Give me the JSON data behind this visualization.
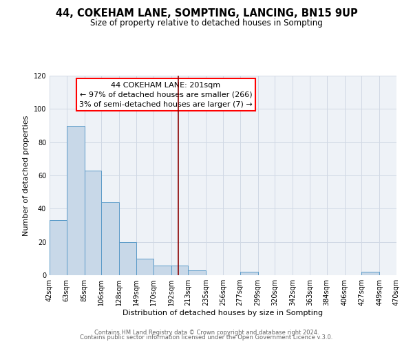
{
  "title": "44, COKEHAM LANE, SOMPTING, LANCING, BN15 9UP",
  "subtitle": "Size of property relative to detached houses in Sompting",
  "xlabel": "Distribution of detached houses by size in Sompting",
  "ylabel": "Number of detached properties",
  "bar_color": "#c8d8e8",
  "bar_edge_color": "#5a9ac8",
  "background_color": "#eef2f7",
  "grid_color": "#d0d8e4",
  "bin_edges": [
    42,
    63,
    85,
    106,
    128,
    149,
    170,
    192,
    213,
    235,
    256,
    277,
    299,
    320,
    342,
    363,
    384,
    406,
    427,
    449,
    470
  ],
  "bin_labels": [
    "42sqm",
    "63sqm",
    "85sqm",
    "106sqm",
    "128sqm",
    "149sqm",
    "170sqm",
    "192sqm",
    "213sqm",
    "235sqm",
    "256sqm",
    "277sqm",
    "299sqm",
    "320sqm",
    "342sqm",
    "363sqm",
    "384sqm",
    "406sqm",
    "427sqm",
    "449sqm",
    "470sqm"
  ],
  "counts": [
    33,
    90,
    63,
    44,
    20,
    10,
    6,
    6,
    3,
    0,
    0,
    2,
    0,
    0,
    0,
    0,
    0,
    0,
    2,
    0
  ],
  "ylim": [
    0,
    120
  ],
  "yticks": [
    0,
    20,
    40,
    60,
    80,
    100,
    120
  ],
  "property_line_x": 201,
  "annotation_title": "44 COKEHAM LANE: 201sqm",
  "annotation_line1": "← 97% of detached houses are smaller (266)",
  "annotation_line2": "3% of semi-detached houses are larger (7) →",
  "footer_line1": "Contains HM Land Registry data © Crown copyright and database right 2024.",
  "footer_line2": "Contains public sector information licensed under the Open Government Licence v.3.0.",
  "title_fontsize": 10.5,
  "subtitle_fontsize": 8.5,
  "axis_label_fontsize": 8,
  "tick_fontsize": 7,
  "annotation_fontsize": 8,
  "footer_fontsize": 6
}
